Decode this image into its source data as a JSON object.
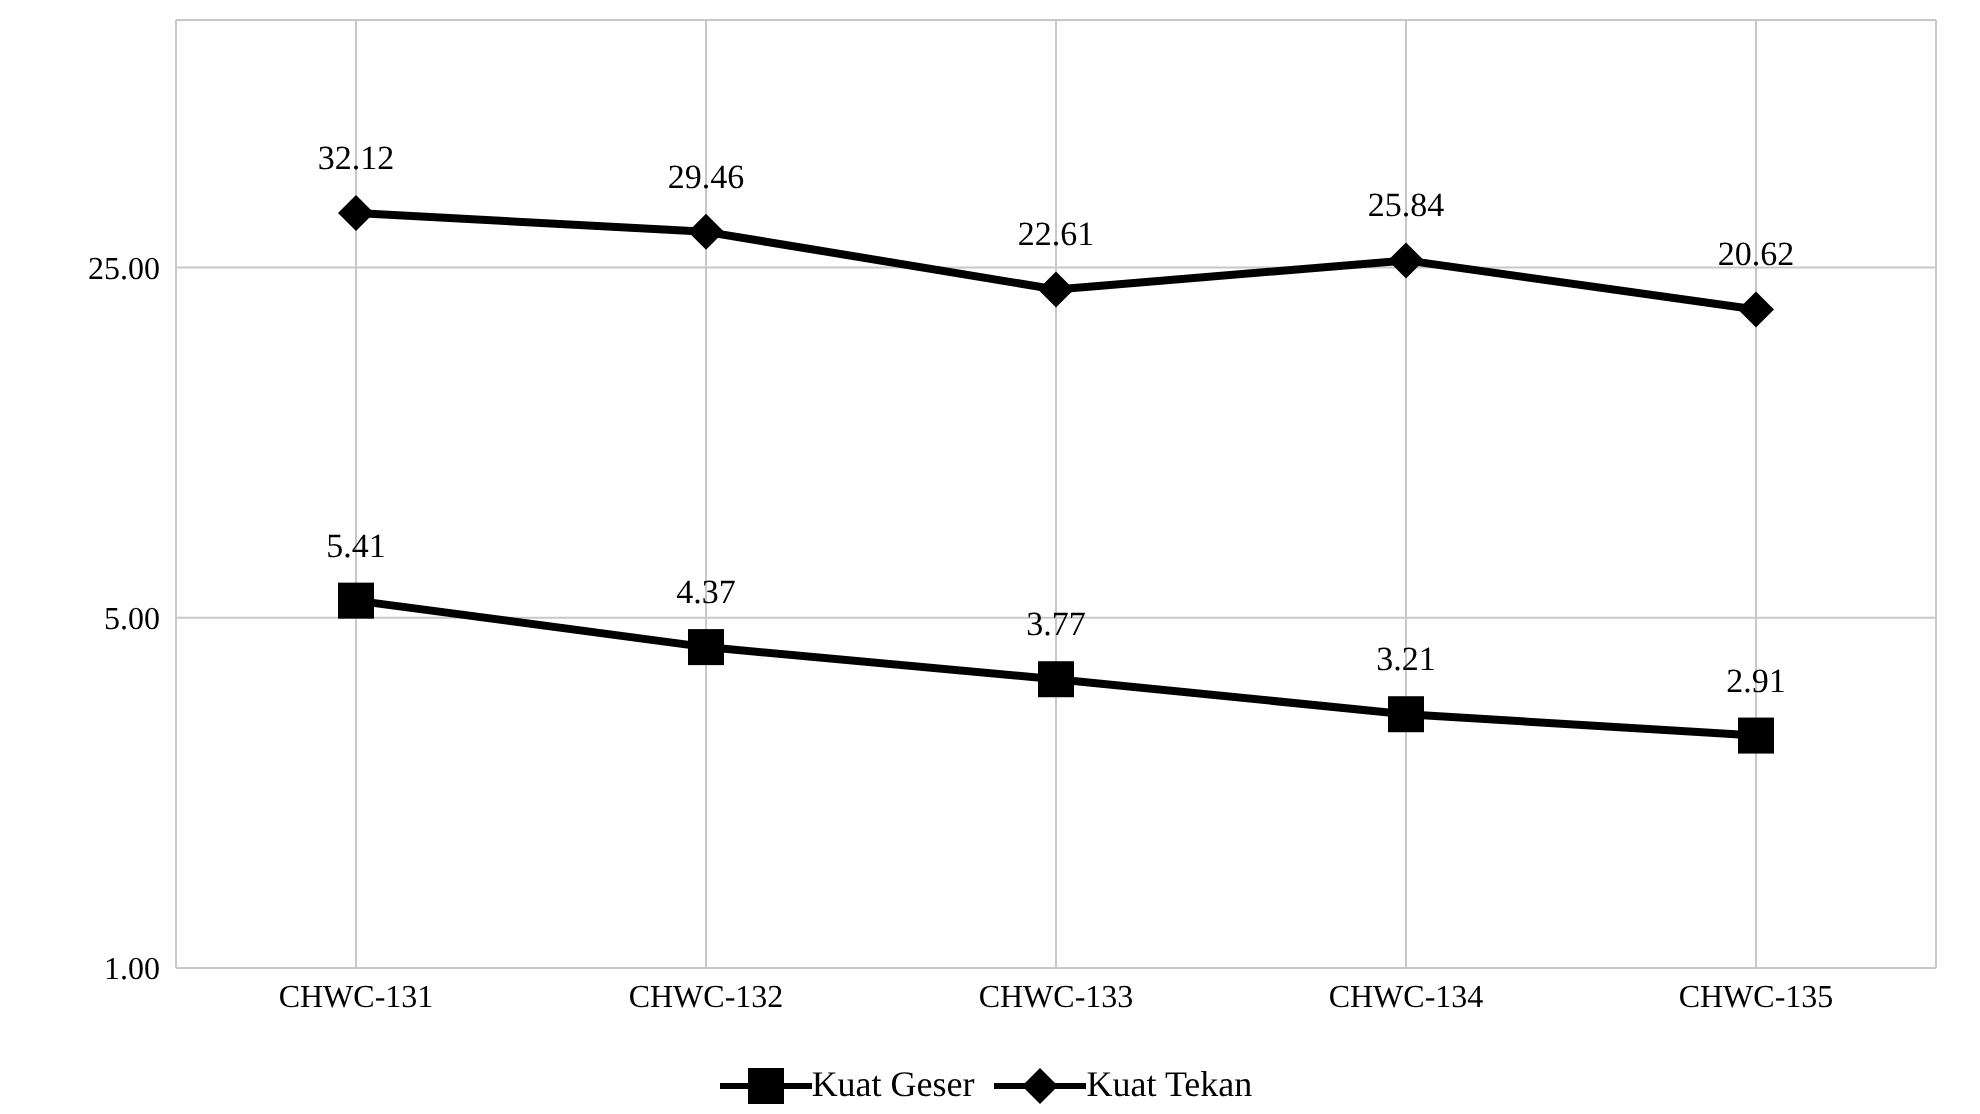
{
  "chart_data": {
    "type": "line",
    "categories": [
      "CHWC-131",
      "CHWC-132",
      "CHWC-133",
      "CHWC-134",
      "CHWC-135"
    ],
    "series": [
      {
        "name": "Kuat Geser",
        "color": "#000000",
        "marker": "square",
        "values": [
          5.41,
          4.37,
          3.77,
          3.21,
          2.91
        ]
      },
      {
        "name": "Kuat Tekan",
        "color": "#000000",
        "marker": "diamond",
        "values": [
          32.12,
          29.46,
          22.61,
          25.84,
          20.62
        ]
      }
    ],
    "log": true,
    "ylim": [
      1,
      78
    ],
    "yticks": [
      {
        "value": 1,
        "label": "1.00"
      },
      {
        "value": 5,
        "label": "5.00"
      },
      {
        "value": 25,
        "label": "25.00"
      }
    ],
    "grid": true,
    "legend": "bottom",
    "data_labels": true
  }
}
